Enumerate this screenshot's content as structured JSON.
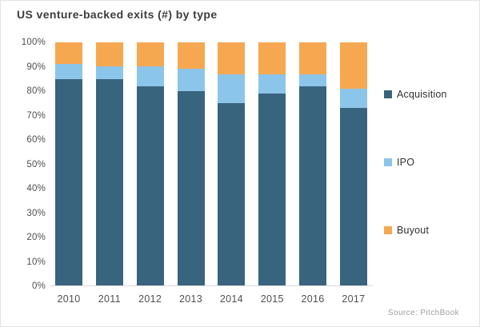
{
  "title": "US venture-backed exits (#) by type",
  "source": "Source: PitchBook",
  "colors": {
    "acquisition": "#38647E",
    "ipo": "#8CC5EA",
    "buyout": "#F6A851",
    "axis_line": "#d9d9d9"
  },
  "chart_data": {
    "type": "bar",
    "stacked": true,
    "title": "US venture-backed exits (#) by type",
    "categories": [
      "2010",
      "2011",
      "2012",
      "2013",
      "2014",
      "2015",
      "2016",
      "2017"
    ],
    "series": [
      {
        "name": "Acquisition",
        "color": "#38647E",
        "values": [
          85,
          85,
          82,
          80,
          75,
          79,
          82,
          73
        ]
      },
      {
        "name": "IPO",
        "color": "#8CC5EA",
        "values": [
          6,
          5,
          8,
          9,
          12,
          8,
          5,
          8
        ]
      },
      {
        "name": "Buyout",
        "color": "#F6A851",
        "values": [
          9,
          10,
          10,
          11,
          13,
          13,
          13,
          19
        ]
      }
    ],
    "unit": "%",
    "ylim": [
      0,
      100
    ],
    "y_ticks": [
      "100%",
      "90%",
      "80%",
      "70%",
      "60%",
      "50%",
      "40%",
      "30%",
      "20%",
      "10%",
      "0%"
    ],
    "grid": false,
    "legend_position": "right",
    "source": "Source: PitchBook"
  }
}
